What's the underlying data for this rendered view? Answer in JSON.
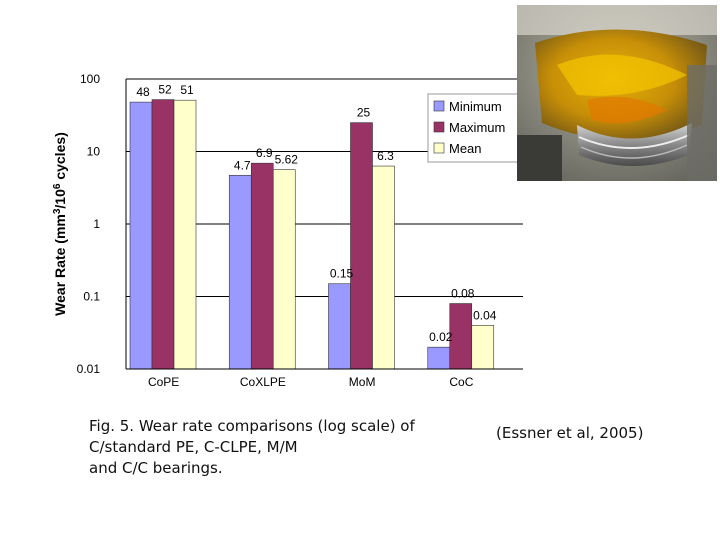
{
  "chart_data": {
    "type": "bar",
    "scale": "log",
    "ylim": [
      0.01,
      100
    ],
    "ylabel_main": "Wear Rate (mm",
    "ylabel_sup1": "3",
    "ylabel_mid": "/10",
    "ylabel_sup2": "6",
    "ylabel_end": " cycles)",
    "yticks": [
      "100",
      "10",
      "1",
      "0.1",
      "0.01"
    ],
    "categories": [
      "CoPE",
      "CoXLPE",
      "MoM",
      "CoC"
    ],
    "series": [
      {
        "name": "Minimum",
        "color": "#9999ff",
        "values": [
          48,
          4.7,
          0.15,
          0.02
        ],
        "labels": [
          "48",
          "4.7",
          "0.15",
          "0.02"
        ]
      },
      {
        "name": "Maximum",
        "color": "#993366",
        "values": [
          52,
          6.9,
          25,
          0.08
        ],
        "labels": [
          "52",
          "6.9",
          "25",
          "0.08"
        ]
      },
      {
        "name": "Mean",
        "color": "#ffffcc",
        "values": [
          51,
          5.62,
          6.3,
          0.04
        ],
        "labels": [
          "51",
          "5.62",
          "6.3",
          "0.04"
        ]
      }
    ],
    "grid": true,
    "legend_position": "top-right"
  },
  "caption": {
    "line1": "Fig. 5. Wear rate comparisons (log scale) of",
    "line2": "C/standard PE, C-CLPE, M/M",
    "line3": "and C/C bearings."
  },
  "citation": "(Essner et al, 2005)"
}
